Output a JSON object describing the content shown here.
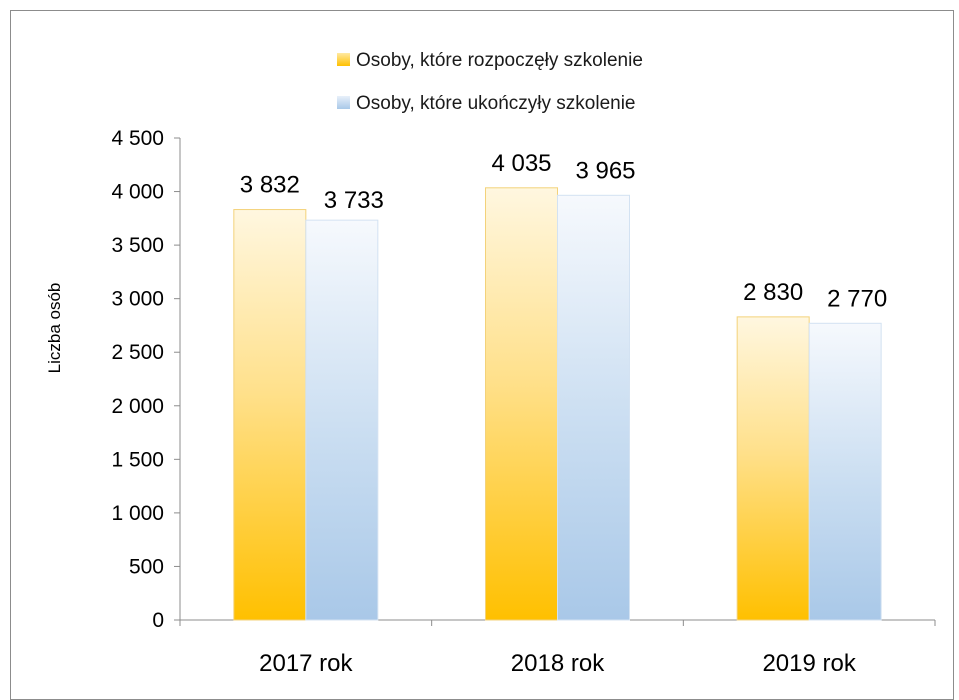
{
  "chart_data": {
    "type": "bar",
    "categories": [
      "2017 rok",
      "2018 rok",
      "2019 rok"
    ],
    "series": [
      {
        "name": "Osoby, które rozpoczęły szkolenie",
        "values": [
          3832,
          4035,
          2830
        ],
        "value_labels": [
          "3 832",
          "4 035",
          "2 830"
        ],
        "color": "#FFC000"
      },
      {
        "name": "Osoby, które ukończyły szkolenie",
        "values": [
          3733,
          3965,
          2770
        ],
        "value_labels": [
          "3 733",
          "3 965",
          "2 770"
        ],
        "color": "#A9C8E8"
      }
    ],
    "ylabel": "Liczba osób",
    "ylim": [
      0,
      4500
    ],
    "yticks": [
      0,
      500,
      1000,
      1500,
      2000,
      2500,
      3000,
      3500,
      4000,
      4500
    ],
    "ytick_labels": [
      "0",
      "500",
      "1 000",
      "1 500",
      "2 000",
      "2 500",
      "3 000",
      "3 500",
      "4 000",
      "4 500"
    ],
    "legend_position": "top-center",
    "grid": false
  }
}
